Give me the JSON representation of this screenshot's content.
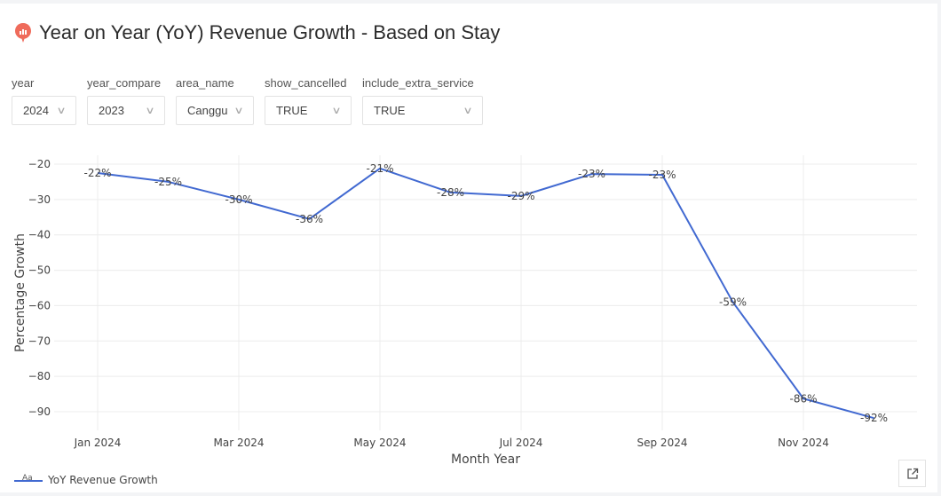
{
  "header": {
    "title": "Year on Year (YoY) Revenue Growth - Based on Stay",
    "icon": "chart-bubble-icon",
    "icon_color": "#ef6b5b"
  },
  "filters": [
    {
      "label": "year",
      "value": "2024"
    },
    {
      "label": "year_compare",
      "value": "2023"
    },
    {
      "label": "area_name",
      "value": "Canggu"
    },
    {
      "label": "show_cancelled",
      "value": "TRUE"
    },
    {
      "label": "include_extra_service",
      "value": "TRUE"
    }
  ],
  "export_button": {
    "icon": "external-link-icon"
  },
  "chart_data": {
    "type": "line",
    "title": "",
    "xlabel": "Month Year",
    "ylabel": "Percentage Growth",
    "x": [
      "Jan 2024",
      "Feb 2024",
      "Mar 2024",
      "Apr 2024",
      "May 2024",
      "Jun 2024",
      "Jul 2024",
      "Aug 2024",
      "Sep 2024",
      "Oct 2024",
      "Nov 2024",
      "Dec 2024"
    ],
    "x_ticks": [
      "Jan 2024",
      "Mar 2024",
      "May 2024",
      "Jul 2024",
      "Sep 2024",
      "Nov 2024"
    ],
    "y_ticks": [
      -20,
      -30,
      -40,
      -50,
      -60,
      -70,
      -80,
      -90
    ],
    "y_tick_labels": [
      "−20",
      "−30",
      "−40",
      "−50",
      "−60",
      "−70",
      "−80",
      "−90"
    ],
    "ylim": [
      -95,
      -17
    ],
    "grid": true,
    "series": [
      {
        "name": "YoY Revenue Growth",
        "color": "#4169d1",
        "values": [
          -22.5,
          -25,
          -30,
          -35.5,
          -21.2,
          -28,
          -29,
          -22.8,
          -23,
          -59,
          -86.3,
          -91.8
        ],
        "labels": [
          "-22%",
          "-25%",
          "-30%",
          "-36%",
          "-21%",
          "-28%",
          "-29%",
          "-23%",
          "-23%",
          "-59%",
          "-86%",
          "-92%"
        ]
      }
    ],
    "legend": {
      "position": "bottom-left",
      "entries": [
        "YoY Revenue Growth"
      ],
      "swatch_text": "Aa"
    }
  }
}
